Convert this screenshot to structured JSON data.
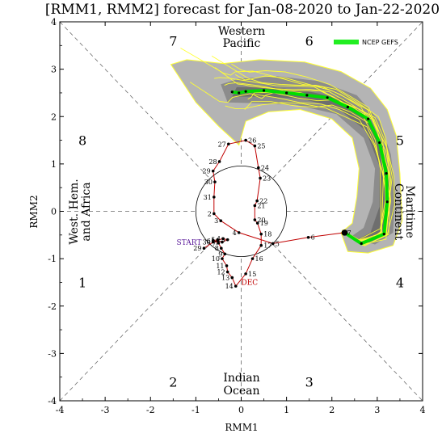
{
  "chart_data": {
    "type": "line",
    "title": "[RMM1, RMM2] forecast for Jan-08-2020 to Jan-22-2020",
    "xlabel": "RMM1",
    "ylabel": "RMM2",
    "xlim": [
      -4,
      4
    ],
    "ylim": [
      -4,
      4
    ],
    "xticks": [
      "-4",
      "-3",
      "-2",
      "-1",
      "0",
      "1",
      "2",
      "3",
      "4"
    ],
    "yticks": [
      "-4",
      "-3",
      "-2",
      "-1",
      "0",
      "1",
      "2",
      "3",
      "4"
    ],
    "phase_labels": [
      {
        "label": "1",
        "x": -3.5,
        "y": -1.5
      },
      {
        "label": "2",
        "x": -1.5,
        "y": -3.6
      },
      {
        "label": "3",
        "x": 1.5,
        "y": -3.6
      },
      {
        "label": "4",
        "x": 3.5,
        "y": -1.5
      },
      {
        "label": "5",
        "x": 3.5,
        "y": 1.5
      },
      {
        "label": "6",
        "x": 1.5,
        "y": 3.6
      },
      {
        "label": "7",
        "x": -1.5,
        "y": 3.6
      },
      {
        "label": "8",
        "x": -3.5,
        "y": 1.5
      }
    ],
    "regions": {
      "western_pacific": [
        "Western",
        "Pacific"
      ],
      "indian_ocean": [
        "Indian",
        "Ocean"
      ],
      "west_hem": [
        "West. Hem.",
        "and Africa"
      ],
      "maritime": [
        "Maritime",
        "Continent"
      ]
    },
    "legend": {
      "label": "NCEP GEFS",
      "color": "#22ee22",
      "position": "top-right"
    },
    "observed_path": {
      "start_label": "START",
      "dec_label": "DEC",
      "color": "#c00000",
      "points": [
        {
          "d": "29",
          "x": -0.82,
          "y": -0.78
        },
        {
          "d": "30",
          "x": -0.62,
          "y": -0.65
        },
        {
          "d": "1",
          "x": -0.52,
          "y": -0.62
        },
        {
          "d": "2",
          "x": -0.42,
          "y": -0.65
        },
        {
          "d": "3",
          "x": -0.3,
          "y": -0.6
        },
        {
          "d": "4",
          "x": -0.4,
          "y": -0.58
        },
        {
          "d": "5",
          "x": -0.52,
          "y": -0.6
        },
        {
          "d": "6",
          "x": -0.62,
          "y": -0.62
        },
        {
          "d": "7",
          "x": -0.5,
          "y": -0.67
        },
        {
          "d": "8",
          "x": -0.44,
          "y": -0.78
        },
        {
          "d": "9",
          "x": -0.36,
          "y": -0.9
        },
        {
          "d": "10",
          "x": -0.42,
          "y": -1.0
        },
        {
          "d": "11",
          "x": -0.32,
          "y": -1.15
        },
        {
          "d": "12",
          "x": -0.3,
          "y": -1.28
        },
        {
          "d": "13",
          "x": -0.2,
          "y": -1.4
        },
        {
          "d": "14",
          "x": -0.12,
          "y": -1.58
        },
        {
          "d": "15",
          "x": 0.1,
          "y": -1.32
        },
        {
          "d": "16",
          "x": 0.25,
          "y": -1.0
        },
        {
          "d": "17",
          "x": 0.44,
          "y": -0.72
        },
        {
          "d": "18",
          "x": 0.44,
          "y": -0.48
        },
        {
          "d": "19",
          "x": 0.36,
          "y": -0.25
        },
        {
          "d": "20",
          "x": 0.3,
          "y": -0.18
        },
        {
          "d": "21",
          "x": 0.3,
          "y": 0.12
        },
        {
          "d": "22",
          "x": 0.35,
          "y": 0.22
        },
        {
          "d": "23",
          "x": 0.42,
          "y": 0.7
        },
        {
          "d": "24",
          "x": 0.38,
          "y": 0.92
        },
        {
          "d": "25",
          "x": 0.3,
          "y": 1.38
        },
        {
          "d": "26",
          "x": 0.1,
          "y": 1.5
        },
        {
          "d": "27",
          "x": -0.28,
          "y": 1.42
        },
        {
          "d": "28",
          "x": -0.48,
          "y": 1.05
        },
        {
          "d": "29",
          "x": -0.62,
          "y": 0.85
        },
        {
          "d": "30",
          "x": -0.58,
          "y": 0.62
        },
        {
          "d": "31",
          "x": -0.6,
          "y": 0.3
        },
        {
          "d": "2",
          "x": -0.6,
          "y": -0.05
        },
        {
          "d": "3",
          "x": -0.45,
          "y": -0.2
        },
        {
          "d": "4",
          "x": -0.05,
          "y": -0.45
        },
        {
          "d": "5",
          "x": 0.7,
          "y": -0.68
        },
        {
          "d": "6",
          "x": 1.48,
          "y": -0.55
        },
        {
          "d": "7",
          "x": 2.28,
          "y": -0.45
        }
      ]
    },
    "ensemble_mean": {
      "color": "#00dd00",
      "points": [
        {
          "x": 2.28,
          "y": -0.45
        },
        {
          "x": 2.65,
          "y": -0.68
        },
        {
          "x": 3.15,
          "y": -0.48
        },
        {
          "x": 3.22,
          "y": 0.2
        },
        {
          "x": 3.2,
          "y": 0.8
        },
        {
          "x": 3.05,
          "y": 1.45
        },
        {
          "x": 2.8,
          "y": 1.95
        },
        {
          "x": 2.35,
          "y": 2.2
        },
        {
          "x": 1.9,
          "y": 2.4
        },
        {
          "x": 1.45,
          "y": 2.45
        },
        {
          "x": 1.0,
          "y": 2.5
        },
        {
          "x": 0.5,
          "y": 2.55
        },
        {
          "x": 0.1,
          "y": 2.53
        },
        {
          "x": -0.05,
          "y": 2.5
        },
        {
          "x": -0.2,
          "y": 2.52
        }
      ]
    },
    "spread_outer": [
      [
        2.2,
        -0.45
      ],
      [
        2.35,
        -0.85
      ],
      [
        2.8,
        -0.88
      ],
      [
        3.35,
        -0.72
      ],
      [
        3.55,
        -0.2
      ],
      [
        3.5,
        0.8
      ],
      [
        3.42,
        1.6
      ],
      [
        3.22,
        2.15
      ],
      [
        2.85,
        2.6
      ],
      [
        2.2,
        2.95
      ],
      [
        1.4,
        3.15
      ],
      [
        0.4,
        3.2
      ],
      [
        -0.4,
        3.12
      ],
      [
        -1.2,
        3.2
      ],
      [
        -1.55,
        3.1
      ],
      [
        -1.0,
        2.3
      ],
      [
        -0.5,
        1.8
      ],
      [
        -0.05,
        1.4
      ],
      [
        0.1,
        1.9
      ],
      [
        0.6,
        2.1
      ],
      [
        1.3,
        2.15
      ],
      [
        2.0,
        1.95
      ],
      [
        2.45,
        1.55
      ],
      [
        2.6,
        0.9
      ],
      [
        2.55,
        0.3
      ],
      [
        2.45,
        -0.25
      ]
    ],
    "spread_inner": [
      [
        2.4,
        -0.55
      ],
      [
        2.95,
        -0.7
      ],
      [
        3.35,
        -0.45
      ],
      [
        3.4,
        0.4
      ],
      [
        3.3,
        1.2
      ],
      [
        3.05,
        1.9
      ],
      [
        2.55,
        2.45
      ],
      [
        1.7,
        2.75
      ],
      [
        0.8,
        2.85
      ],
      [
        -0.05,
        2.8
      ],
      [
        -0.45,
        2.68
      ],
      [
        -0.3,
        2.3
      ],
      [
        0.3,
        2.28
      ],
      [
        1.2,
        2.25
      ],
      [
        2.1,
        2.05
      ],
      [
        2.7,
        1.55
      ],
      [
        2.95,
        0.9
      ],
      [
        2.9,
        0.2
      ],
      [
        2.7,
        -0.35
      ]
    ],
    "spread_core": [
      [
        2.55,
        -0.6
      ],
      [
        3.0,
        -0.58
      ],
      [
        3.25,
        -0.2
      ],
      [
        3.28,
        0.6
      ],
      [
        3.12,
        1.4
      ],
      [
        2.8,
        2.0
      ],
      [
        2.2,
        2.38
      ],
      [
        1.4,
        2.55
      ],
      [
        0.6,
        2.62
      ],
      [
        -0.1,
        2.62
      ],
      [
        -0.2,
        2.42
      ],
      [
        0.5,
        2.42
      ],
      [
        1.3,
        2.38
      ],
      [
        2.1,
        2.2
      ],
      [
        2.75,
        1.7
      ],
      [
        3.05,
        0.95
      ],
      [
        3.05,
        0.1
      ],
      [
        2.85,
        -0.45
      ]
    ]
  }
}
